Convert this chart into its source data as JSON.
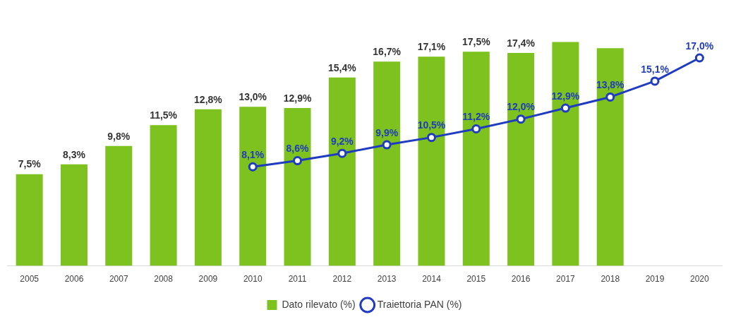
{
  "chart_data": {
    "type": "bar",
    "categories": [
      "2005",
      "2006",
      "2007",
      "2008",
      "2009",
      "2010",
      "2011",
      "2012",
      "2013",
      "2014",
      "2015",
      "2016",
      "2017",
      "2018",
      "2019",
      "2020"
    ],
    "series": [
      {
        "name": "Dato rilevato (%)",
        "color": "#7dc21e",
        "values": [
          7.5,
          8.3,
          9.8,
          11.5,
          12.8,
          13.0,
          12.9,
          15.4,
          16.7,
          17.1,
          17.5,
          17.4,
          18.3,
          17.8,
          null,
          null
        ],
        "value_labels": [
          "7,5%",
          "8,3%",
          "9,8%",
          "11,5%",
          "12,8%",
          "13,0%",
          "12,9%",
          "15,4%",
          "16,7%",
          "17,1%",
          "17,5%",
          "17,4%",
          null,
          null,
          null,
          null
        ]
      },
      {
        "name": "Traiettoria PAN (%)",
        "type": "line",
        "color": "#1f3bbf",
        "marker": "circle",
        "values": [
          null,
          null,
          null,
          null,
          null,
          8.1,
          8.6,
          9.2,
          9.9,
          10.5,
          11.2,
          12.0,
          12.9,
          13.8,
          15.1,
          17.0
        ],
        "value_labels": [
          null,
          null,
          null,
          null,
          null,
          "8,1%",
          "8,6%",
          "9,2%",
          "9,9%",
          "10,5%",
          "11,2%",
          "12,0%",
          "12,9%",
          "13,8%",
          "15,1%",
          "17,0%"
        ]
      }
    ],
    "legend": "bottom",
    "grid": false
  }
}
